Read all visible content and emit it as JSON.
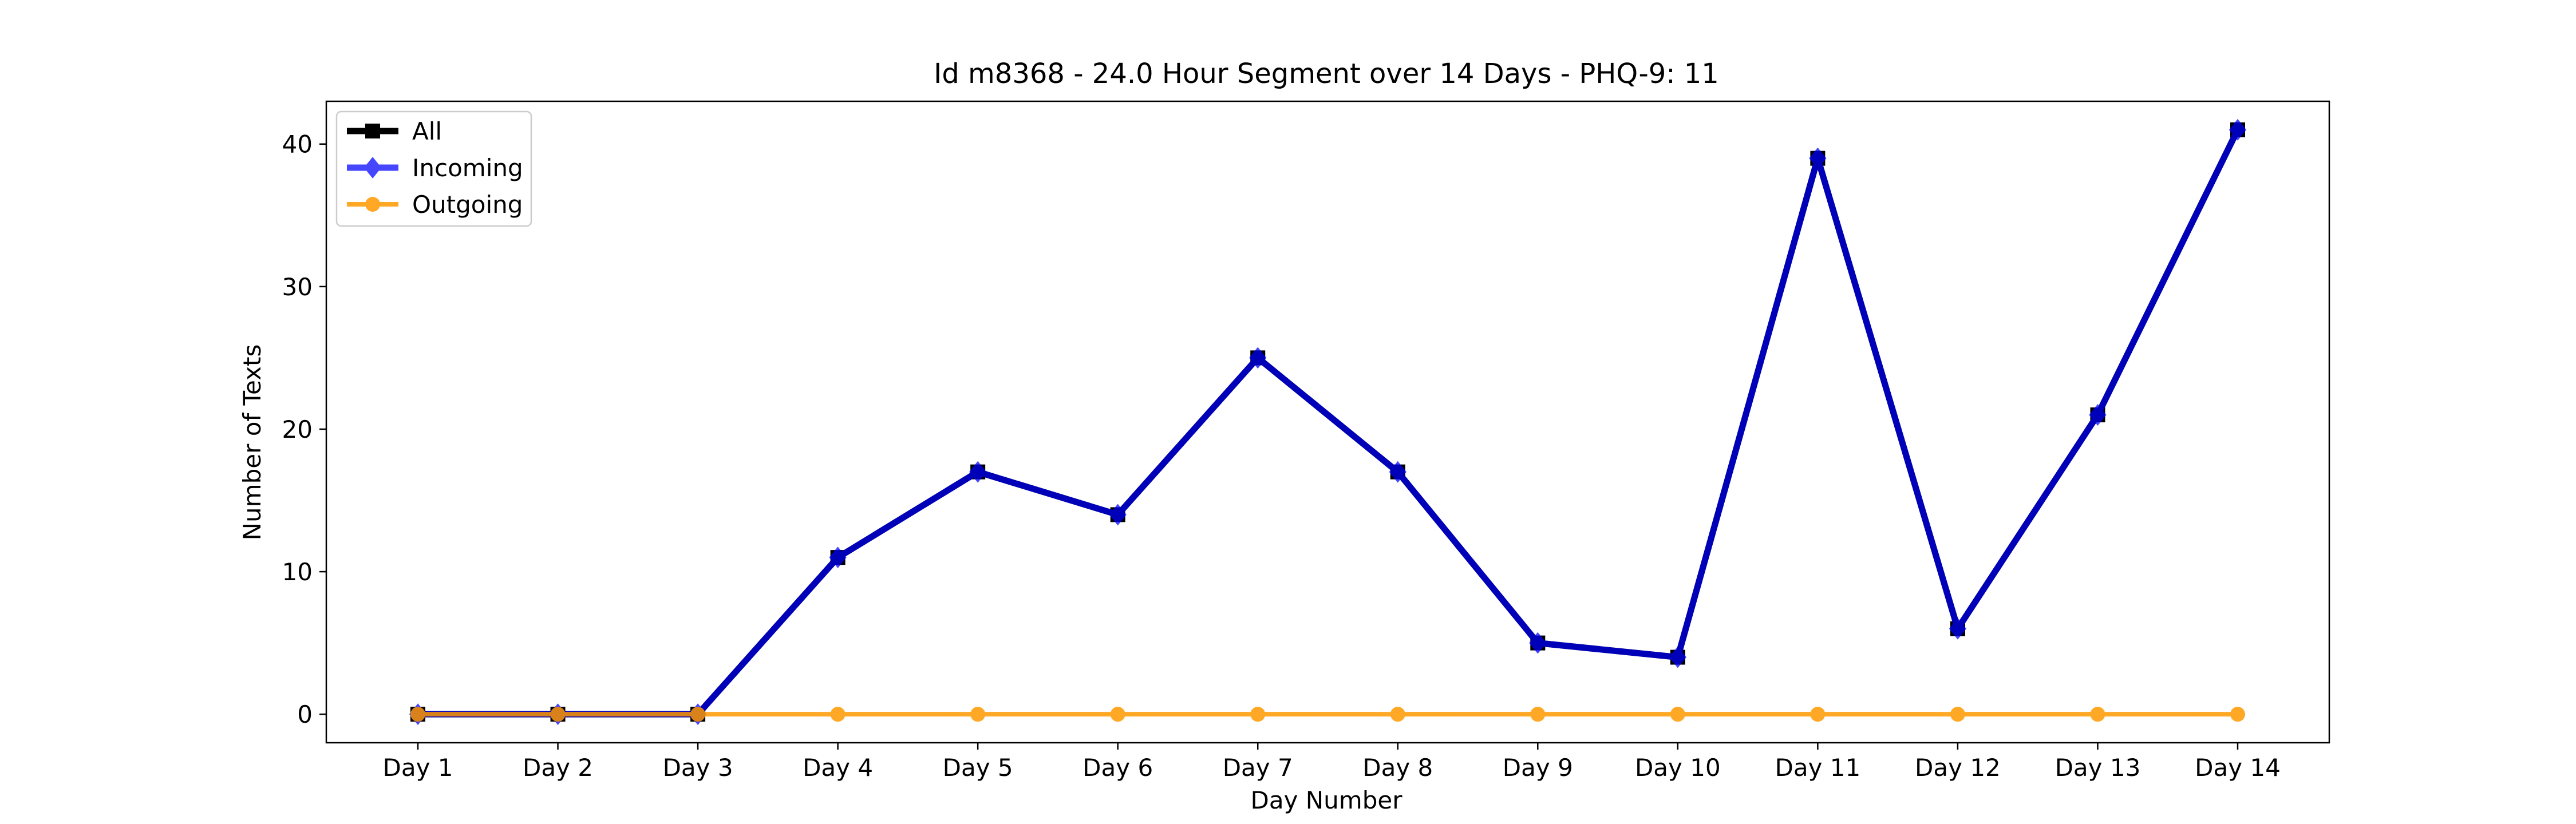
{
  "chart_data": {
    "type": "line",
    "title": "Id m8368 - 24.0 Hour Segment over 14 Days - PHQ-9: 11",
    "xlabel": "Day Number",
    "ylabel": "Number of Texts",
    "categories": [
      "Day 1",
      "Day 2",
      "Day 3",
      "Day 4",
      "Day 5",
      "Day 6",
      "Day 7",
      "Day 8",
      "Day 9",
      "Day 10",
      "Day 11",
      "Day 12",
      "Day 13",
      "Day 14"
    ],
    "ylim": [
      -2,
      43
    ],
    "yticks": [
      0,
      10,
      20,
      30,
      40
    ],
    "legend_position": "top-left",
    "grid": false,
    "series": [
      {
        "name": "All",
        "values": [
          0,
          0,
          0,
          11,
          17,
          14,
          25,
          17,
          5,
          4,
          39,
          6,
          21,
          41
        ],
        "color": "#000000",
        "marker": "square"
      },
      {
        "name": "Incoming",
        "values": [
          0,
          0,
          0,
          11,
          17,
          14,
          25,
          17,
          5,
          4,
          39,
          6,
          21,
          41
        ],
        "color": "#0000ff",
        "marker": "diamond"
      },
      {
        "name": "Outgoing",
        "values": [
          0,
          0,
          0,
          0,
          0,
          0,
          0,
          0,
          0,
          0,
          0,
          0,
          0,
          0
        ],
        "color": "#ff9900",
        "marker": "circle"
      }
    ]
  }
}
